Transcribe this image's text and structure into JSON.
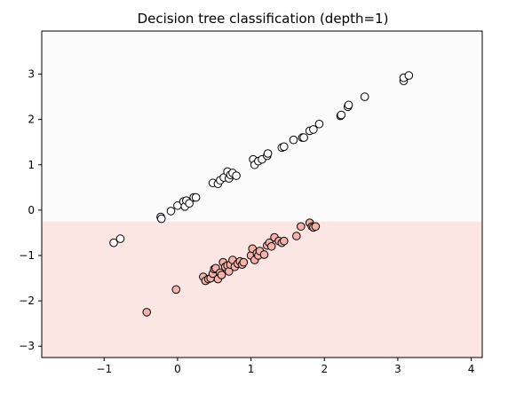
{
  "chart_data": {
    "type": "scatter",
    "title": "Decision tree classification (depth=1)",
    "xlabel": "",
    "ylabel": "",
    "xlim": [
      -1.85,
      4.15
    ],
    "ylim": [
      -3.25,
      3.95
    ],
    "xticks": [
      -1,
      0,
      1,
      2,
      3,
      4
    ],
    "yticks": [
      -3,
      -2,
      -1,
      0,
      1,
      2,
      3
    ],
    "grid": false,
    "decision_boundary": {
      "axis": "y",
      "threshold": -0.25,
      "regions": [
        {
          "side": "above",
          "class": "upper",
          "color": "#fbfbfb"
        },
        {
          "side": "below",
          "class": "lower",
          "color": "#fce6e4"
        }
      ]
    },
    "series": [
      {
        "class": "upper",
        "fill": "#ffffff",
        "edge": "#000000",
        "points": [
          [
            -0.87,
            -0.72
          ],
          [
            -0.78,
            -0.63
          ],
          [
            -0.23,
            -0.15
          ],
          [
            -0.22,
            -0.19
          ],
          [
            -0.09,
            -0.02
          ],
          [
            0.0,
            0.1
          ],
          [
            0.08,
            0.19
          ],
          [
            0.1,
            0.08
          ],
          [
            0.12,
            0.21
          ],
          [
            0.16,
            0.15
          ],
          [
            0.22,
            0.28
          ],
          [
            0.25,
            0.28
          ],
          [
            0.48,
            0.6
          ],
          [
            0.55,
            0.58
          ],
          [
            0.58,
            0.66
          ],
          [
            0.63,
            0.72
          ],
          [
            0.68,
            0.85
          ],
          [
            0.7,
            0.7
          ],
          [
            0.72,
            0.78
          ],
          [
            0.75,
            0.82
          ],
          [
            0.8,
            0.76
          ],
          [
            1.03,
            1.12
          ],
          [
            1.05,
            1.0
          ],
          [
            1.1,
            1.08
          ],
          [
            1.15,
            1.12
          ],
          [
            1.22,
            1.2
          ],
          [
            1.23,
            1.25
          ],
          [
            1.42,
            1.38
          ],
          [
            1.45,
            1.4
          ],
          [
            1.58,
            1.55
          ],
          [
            1.7,
            1.6
          ],
          [
            1.72,
            1.6
          ],
          [
            1.8,
            1.75
          ],
          [
            1.85,
            1.78
          ],
          [
            1.93,
            1.9
          ],
          [
            2.22,
            2.08
          ],
          [
            2.23,
            2.1
          ],
          [
            2.32,
            2.28
          ],
          [
            2.33,
            2.32
          ],
          [
            2.55,
            2.5
          ],
          [
            3.08,
            2.85
          ],
          [
            3.08,
            2.92
          ],
          [
            3.15,
            2.97
          ]
        ]
      },
      {
        "class": "lower",
        "fill": "#f7b2a9",
        "edge": "#000000",
        "points": [
          [
            -0.42,
            -2.25
          ],
          [
            -0.02,
            -1.75
          ],
          [
            0.35,
            -1.47
          ],
          [
            0.38,
            -1.56
          ],
          [
            0.42,
            -1.52
          ],
          [
            0.45,
            -1.5
          ],
          [
            0.48,
            -1.4
          ],
          [
            0.5,
            -1.3
          ],
          [
            0.52,
            -1.28
          ],
          [
            0.55,
            -1.52
          ],
          [
            0.58,
            -1.38
          ],
          [
            0.6,
            -1.43
          ],
          [
            0.62,
            -1.15
          ],
          [
            0.65,
            -1.25
          ],
          [
            0.68,
            -1.22
          ],
          [
            0.7,
            -1.35
          ],
          [
            0.72,
            -1.2
          ],
          [
            0.75,
            -1.1
          ],
          [
            0.78,
            -1.25
          ],
          [
            0.82,
            -1.18
          ],
          [
            0.85,
            -1.13
          ],
          [
            0.88,
            -1.2
          ],
          [
            0.9,
            -1.15
          ],
          [
            1.0,
            -1.0
          ],
          [
            1.02,
            -0.85
          ],
          [
            1.05,
            -1.1
          ],
          [
            1.08,
            -0.95
          ],
          [
            1.1,
            -1.0
          ],
          [
            1.12,
            -0.9
          ],
          [
            1.18,
            -0.98
          ],
          [
            1.22,
            -0.78
          ],
          [
            1.25,
            -0.72
          ],
          [
            1.28,
            -0.8
          ],
          [
            1.32,
            -0.6
          ],
          [
            1.38,
            -0.68
          ],
          [
            1.42,
            -0.72
          ],
          [
            1.45,
            -0.68
          ],
          [
            1.62,
            -0.57
          ],
          [
            1.68,
            -0.36
          ],
          [
            1.8,
            -0.28
          ],
          [
            1.83,
            -0.36
          ],
          [
            1.85,
            -0.38
          ],
          [
            1.88,
            -0.36
          ]
        ]
      }
    ]
  }
}
